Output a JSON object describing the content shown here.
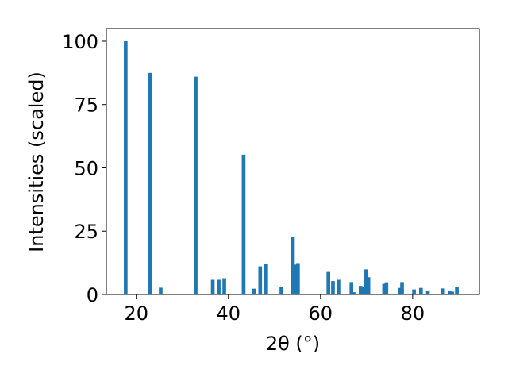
{
  "chart_data": {
    "type": "bar",
    "title": "",
    "xlabel": "2θ (°)",
    "ylabel": "Intensities (scaled)",
    "xlim": [
      13.5,
      94.5
    ],
    "ylim": [
      0,
      105
    ],
    "xticks": [
      20,
      40,
      60,
      80
    ],
    "yticks": [
      0,
      25,
      50,
      75,
      100
    ],
    "grid": false,
    "legend": "none",
    "bar_color": "#1f77b4",
    "bar_width_deg": 0.8,
    "points": [
      {
        "x": 17.7,
        "y": 100
      },
      {
        "x": 23.0,
        "y": 87.5
      },
      {
        "x": 25.3,
        "y": 2.7
      },
      {
        "x": 32.9,
        "y": 86
      },
      {
        "x": 36.6,
        "y": 5.8
      },
      {
        "x": 37.9,
        "y": 5.8
      },
      {
        "x": 39.1,
        "y": 6.4
      },
      {
        "x": 43.3,
        "y": 55.2
      },
      {
        "x": 45.6,
        "y": 2.3
      },
      {
        "x": 46.9,
        "y": 11.1
      },
      {
        "x": 48.2,
        "y": 12.1
      },
      {
        "x": 51.5,
        "y": 2.9
      },
      {
        "x": 54.0,
        "y": 22.6
      },
      {
        "x": 54.6,
        "y": 11.8
      },
      {
        "x": 55.1,
        "y": 12.4
      },
      {
        "x": 61.7,
        "y": 8.9
      },
      {
        "x": 62.7,
        "y": 5.3
      },
      {
        "x": 63.9,
        "y": 5.8
      },
      {
        "x": 66.7,
        "y": 4.9
      },
      {
        "x": 67.2,
        "y": 0.9
      },
      {
        "x": 68.7,
        "y": 3.4
      },
      {
        "x": 69.2,
        "y": 3.0
      },
      {
        "x": 69.8,
        "y": 9.9
      },
      {
        "x": 70.4,
        "y": 6.8
      },
      {
        "x": 73.8,
        "y": 4.2
      },
      {
        "x": 74.3,
        "y": 4.8
      },
      {
        "x": 77.2,
        "y": 2.6
      },
      {
        "x": 77.7,
        "y": 4.9
      },
      {
        "x": 80.3,
        "y": 2.0
      },
      {
        "x": 81.8,
        "y": 2.6
      },
      {
        "x": 83.3,
        "y": 1.4
      },
      {
        "x": 86.6,
        "y": 2.4
      },
      {
        "x": 88.0,
        "y": 1.5
      },
      {
        "x": 88.6,
        "y": 1.1
      },
      {
        "x": 89.6,
        "y": 3.0
      }
    ]
  }
}
